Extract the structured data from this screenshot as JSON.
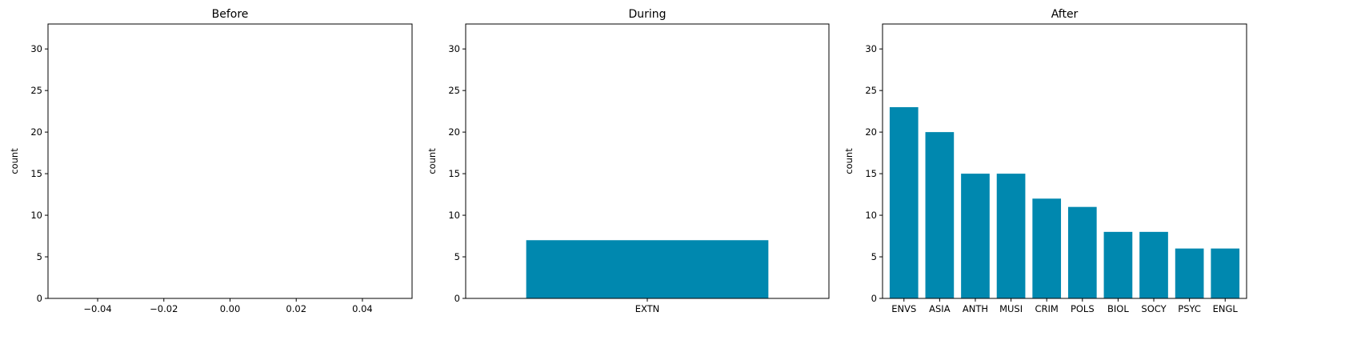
{
  "chart_data": [
    {
      "type": "bar",
      "title": "Before",
      "xlabel": "",
      "ylabel": "count",
      "categories": [],
      "values": [],
      "xlim": [
        -0.055,
        0.055
      ],
      "x_ticks": [
        "−0.04",
        "−0.02",
        "0.00",
        "0.02",
        "0.04"
      ],
      "x_tick_values": [
        -0.04,
        -0.02,
        0.0,
        0.02,
        0.04
      ],
      "ylim": [
        0,
        33
      ],
      "y_ticks": [
        0,
        5,
        10,
        15,
        20,
        25,
        30
      ],
      "color": "#0088AF",
      "grid": false
    },
    {
      "type": "bar",
      "title": "During",
      "xlabel": "",
      "ylabel": "count",
      "categories": [
        "EXTN"
      ],
      "values": [
        7
      ],
      "ylim": [
        0,
        33
      ],
      "y_ticks": [
        0,
        5,
        10,
        15,
        20,
        25,
        30
      ],
      "color": "#0088AF",
      "grid": false
    },
    {
      "type": "bar",
      "title": "After",
      "xlabel": "",
      "ylabel": "count",
      "categories": [
        "ENVS",
        "ASIA",
        "ANTH",
        "MUSI",
        "CRIM",
        "POLS",
        "BIOL",
        "SOCY",
        "PSYC",
        "ENGL"
      ],
      "values": [
        23,
        20,
        15,
        15,
        12,
        11,
        8,
        8,
        6,
        6
      ],
      "ylim": [
        0,
        33
      ],
      "y_ticks": [
        0,
        5,
        10,
        15,
        20,
        25,
        30
      ],
      "color": "#0088AF",
      "grid": false
    }
  ]
}
